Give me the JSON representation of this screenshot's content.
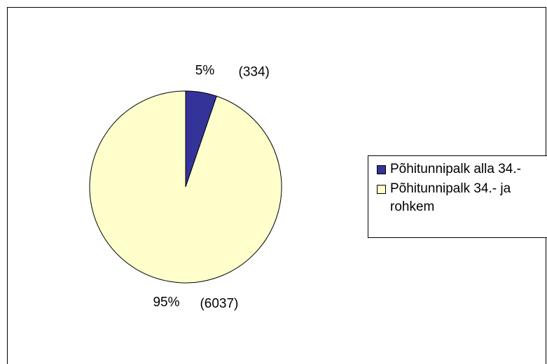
{
  "chart_data": {
    "type": "pie",
    "categories": [
      "Põhitunnipalk alla 34.-",
      "Põhitunnipalk 34.- ja rohkem"
    ],
    "values": [
      334,
      6037
    ],
    "value_labels": [
      "(334)",
      "(6037)"
    ],
    "percentages": [
      5,
      95
    ],
    "percentage_labels": [
      "5%",
      "95%"
    ],
    "colors": [
      "#333399",
      "#FFFFCC"
    ],
    "legend": "right"
  }
}
